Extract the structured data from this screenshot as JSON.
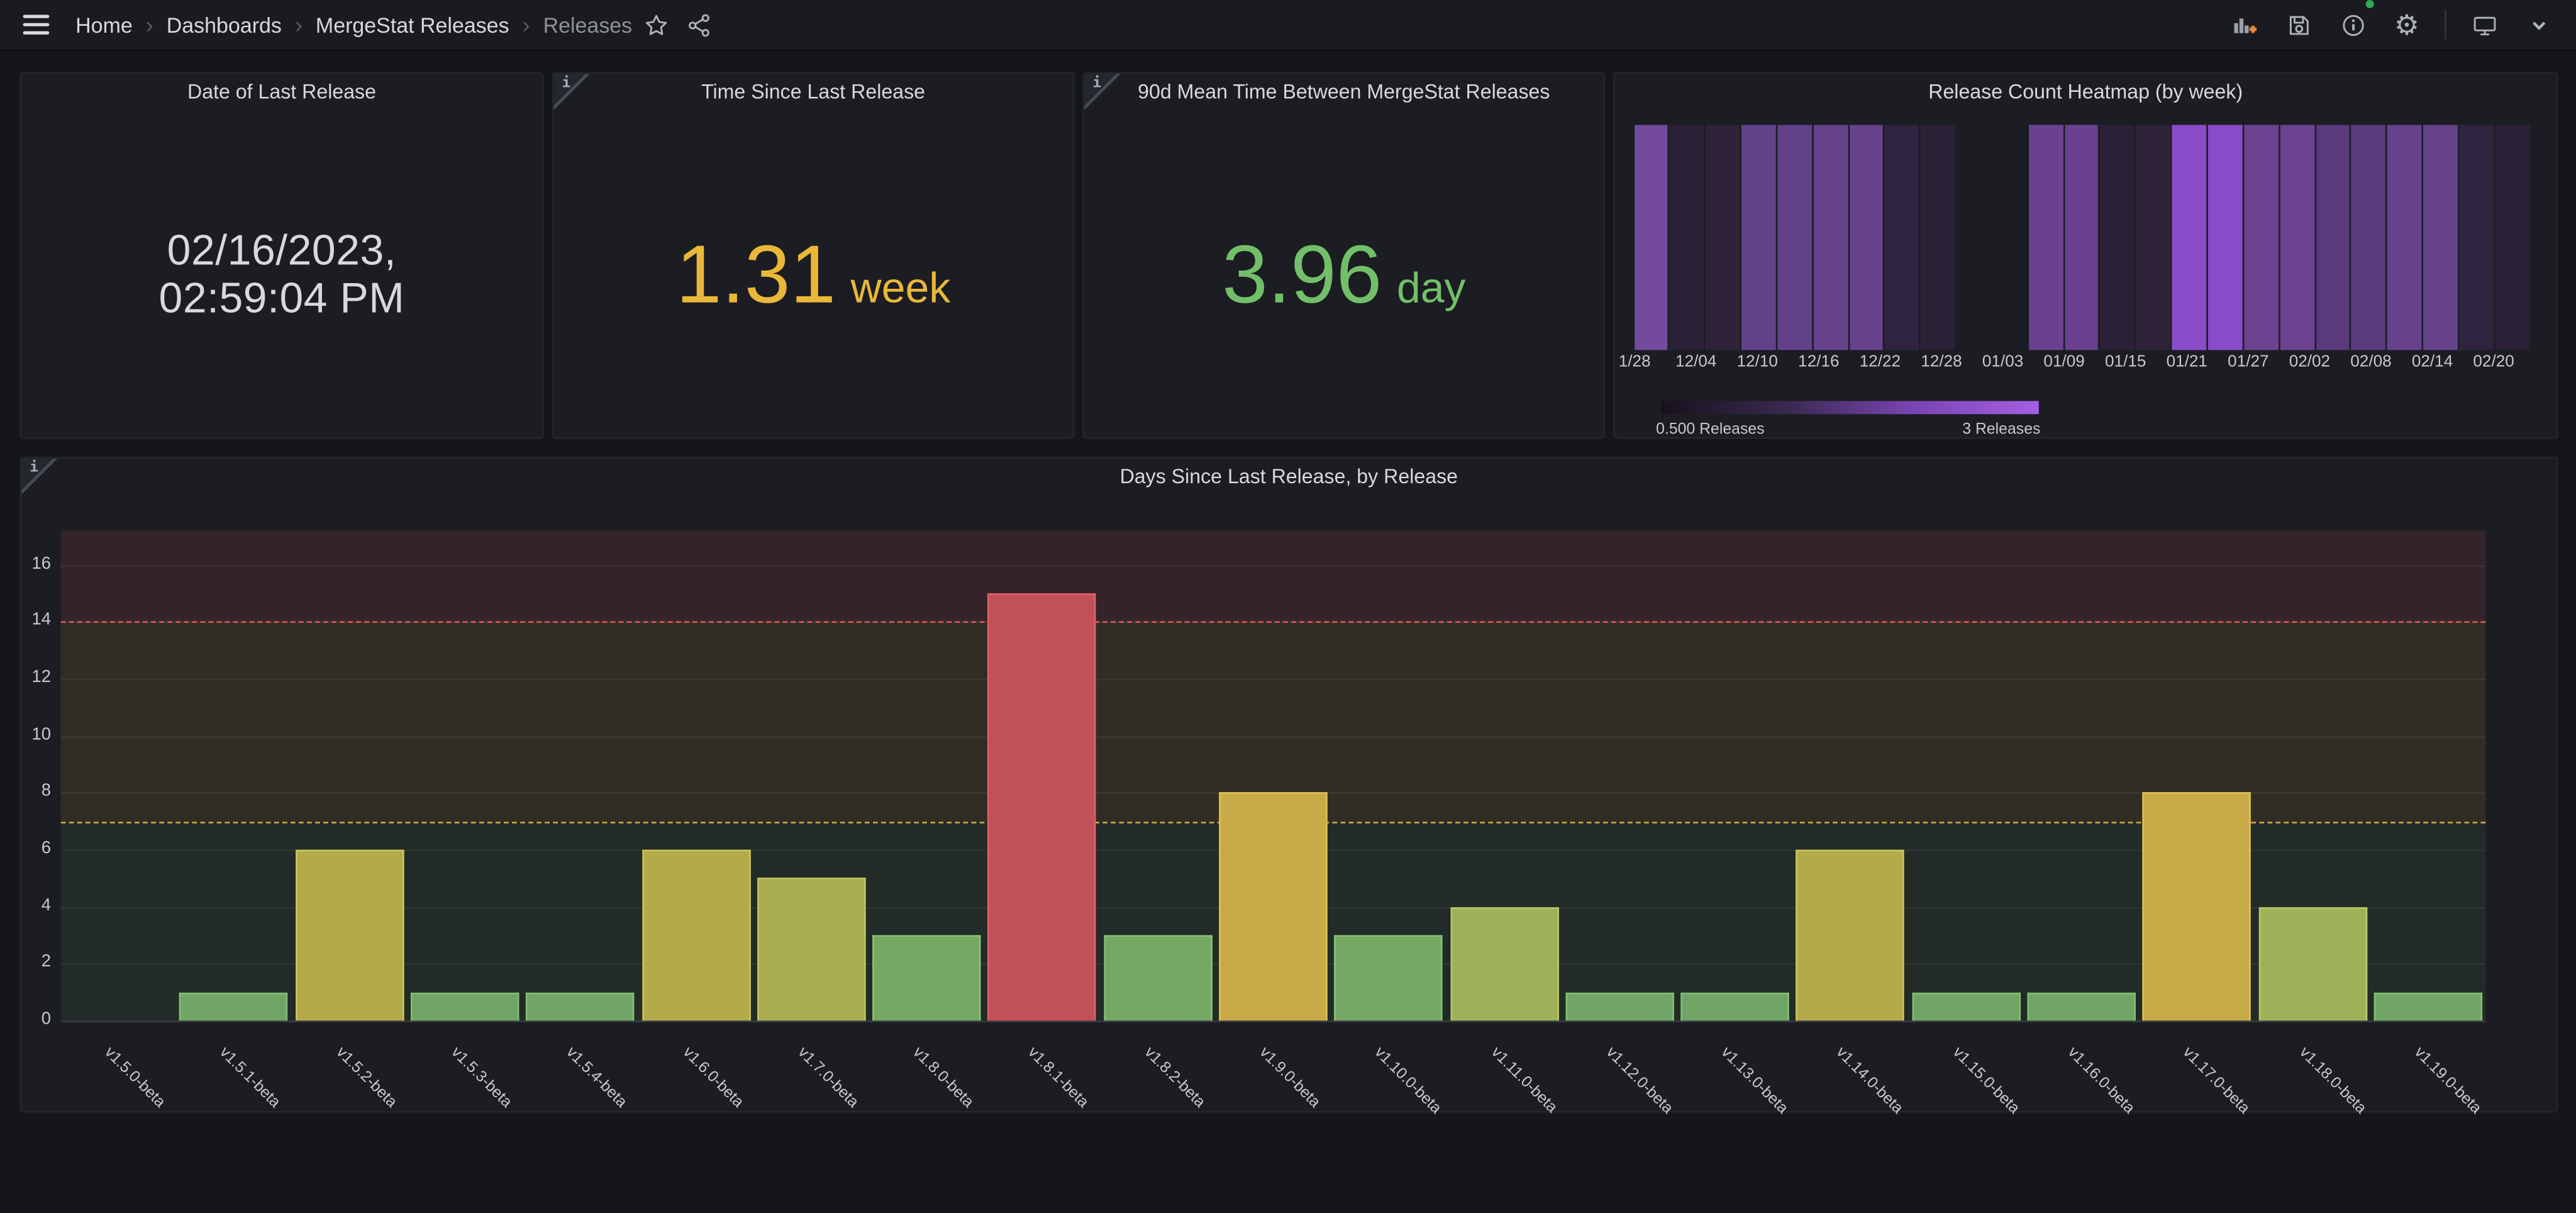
{
  "nav": {
    "breadcrumb": {
      "items": [
        "Home",
        "Dashboards",
        "MergeStat Releases"
      ],
      "current": "Releases",
      "separator": "›"
    }
  },
  "panels": {
    "date": {
      "title": "Date of Last Release",
      "value_line1": "02/16/2023,",
      "value_line2": "02:59:04 PM",
      "color": "#D8D9DA"
    },
    "since": {
      "title": "Time Since Last Release",
      "value": "1.31",
      "unit": "week",
      "color": "#EAB839"
    },
    "mean": {
      "title": "90d Mean Time Between MergeStat Releases",
      "value": "3.96",
      "unit": "day",
      "color": "#73BF69"
    }
  },
  "chart_data": [
    {
      "type": "heatmap",
      "title": "Release Count Heatmap (by week)",
      "x_tick_labels": [
        "1/28",
        "12/04",
        "12/10",
        "12/16",
        "12/22",
        "12/28",
        "01/03",
        "01/09",
        "01/15",
        "01/21",
        "01/27",
        "02/02",
        "02/08",
        "02/14",
        "02/20"
      ],
      "value_unit": "Releases",
      "columns": [
        {
          "value": 2,
          "color": "#744a9c"
        },
        {
          "value": 0.5,
          "color": "#2b2137"
        },
        {
          "value": 0.5,
          "color": "#2e2339"
        },
        {
          "value": 2,
          "color": "#63408a"
        },
        {
          "value": 2,
          "color": "#63408a"
        },
        {
          "value": 2,
          "color": "#66428c"
        },
        {
          "value": 2,
          "color": "#66428c"
        },
        {
          "value": 0.5,
          "color": "#2e2440"
        },
        {
          "value": 0.5,
          "color": "#2b2137"
        },
        {
          "value": null,
          "color": null
        },
        {
          "value": null,
          "color": null
        },
        {
          "value": 2,
          "color": "#6a4191"
        },
        {
          "value": 2,
          "color": "#6a4191"
        },
        {
          "value": 0.5,
          "color": "#2b2137"
        },
        {
          "value": 0.5,
          "color": "#2e2339"
        },
        {
          "value": 3,
          "color": "#8a4bc8"
        },
        {
          "value": 3,
          "color": "#8a4bc8"
        },
        {
          "value": 2,
          "color": "#6a4290"
        },
        {
          "value": 2,
          "color": "#6a4290"
        },
        {
          "value": 1.5,
          "color": "#5a3a7d"
        },
        {
          "value": 1.5,
          "color": "#5a3a7d"
        },
        {
          "value": 2,
          "color": "#66428c"
        },
        {
          "value": 2,
          "color": "#66428c"
        },
        {
          "value": 0.5,
          "color": "#2e2440"
        },
        {
          "value": 0.5,
          "color": "#2b2137"
        }
      ],
      "legend": {
        "min_label": "0.500 Releases",
        "max_label": "3 Releases",
        "gradient_stops": [
          "#17121d",
          "#3a2950",
          "#7a44b4",
          "#a55fe3"
        ]
      }
    },
    {
      "type": "bar",
      "title": "Days Since Last Release, by Release",
      "xlabel": "",
      "ylabel": "",
      "categories": [
        "v1.5.0-beta",
        "v1.5.1-beta",
        "v1.5.2-beta",
        "v1.5.3-beta",
        "v1.5.4-beta",
        "v1.6.0-beta",
        "v1.7.0-beta",
        "v1.8.0-beta",
        "v1.8.1-beta",
        "v1.8.2-beta",
        "v1.9.0-beta",
        "v1.10.0-beta",
        "v1.11.0-beta",
        "v1.12.0-beta",
        "v1.13.0-beta",
        "v1.14.0-beta",
        "v1.15.0-beta",
        "v1.16.0-beta",
        "v1.17.0-beta",
        "v1.18.0-beta",
        "v1.19.0-beta"
      ],
      "values": [
        0,
        1,
        6,
        1,
        1,
        6,
        5,
        3,
        15,
        3,
        8,
        3,
        4,
        1,
        1,
        6,
        1,
        1,
        8,
        4,
        1
      ],
      "bar_fill_colors": [
        null,
        "#70a565",
        "#b3aa4b",
        "#70a565",
        "#70a565",
        "#b3aa4b",
        "#a9ac51",
        "#76a763",
        "#c25058",
        "#76a763",
        "#c8ab48",
        "#76a763",
        "#9eb058",
        "#70a565",
        "#70a565",
        "#b3aa4b",
        "#70a565",
        "#70a565",
        "#c8ab48",
        "#9eb058",
        "#70a565"
      ],
      "bar_border_colors": [
        null,
        "#82bf74",
        "#cdc65a",
        "#82bf74",
        "#82bf74",
        "#cdc65a",
        "#c2c45c",
        "#85c276",
        "#e06069",
        "#85c276",
        "#e0c052",
        "#85c276",
        "#b5ca65",
        "#82bf74",
        "#82bf74",
        "#cdc65a",
        "#82bf74",
        "#82bf74",
        "#e0c052",
        "#b5ca65",
        "#82bf74"
      ],
      "ylim": [
        0,
        17.2
      ],
      "y_ticks": [
        0,
        2,
        4,
        6,
        8,
        10,
        12,
        14,
        16
      ],
      "grid": true,
      "legend_position": "none",
      "thresholds": [
        {
          "value": 7,
          "color": "#cfa945"
        },
        {
          "value": 14,
          "color": "#e0575b"
        }
      ],
      "bands": [
        {
          "from": 0,
          "to": 7,
          "color": "rgba(115,191,105,0.09)"
        },
        {
          "from": 7,
          "to": 14,
          "color": "rgba(234,184,57,0.11)"
        },
        {
          "from": 14,
          "to": 17.2,
          "color": "rgba(224,87,91,0.13)"
        }
      ]
    }
  ]
}
